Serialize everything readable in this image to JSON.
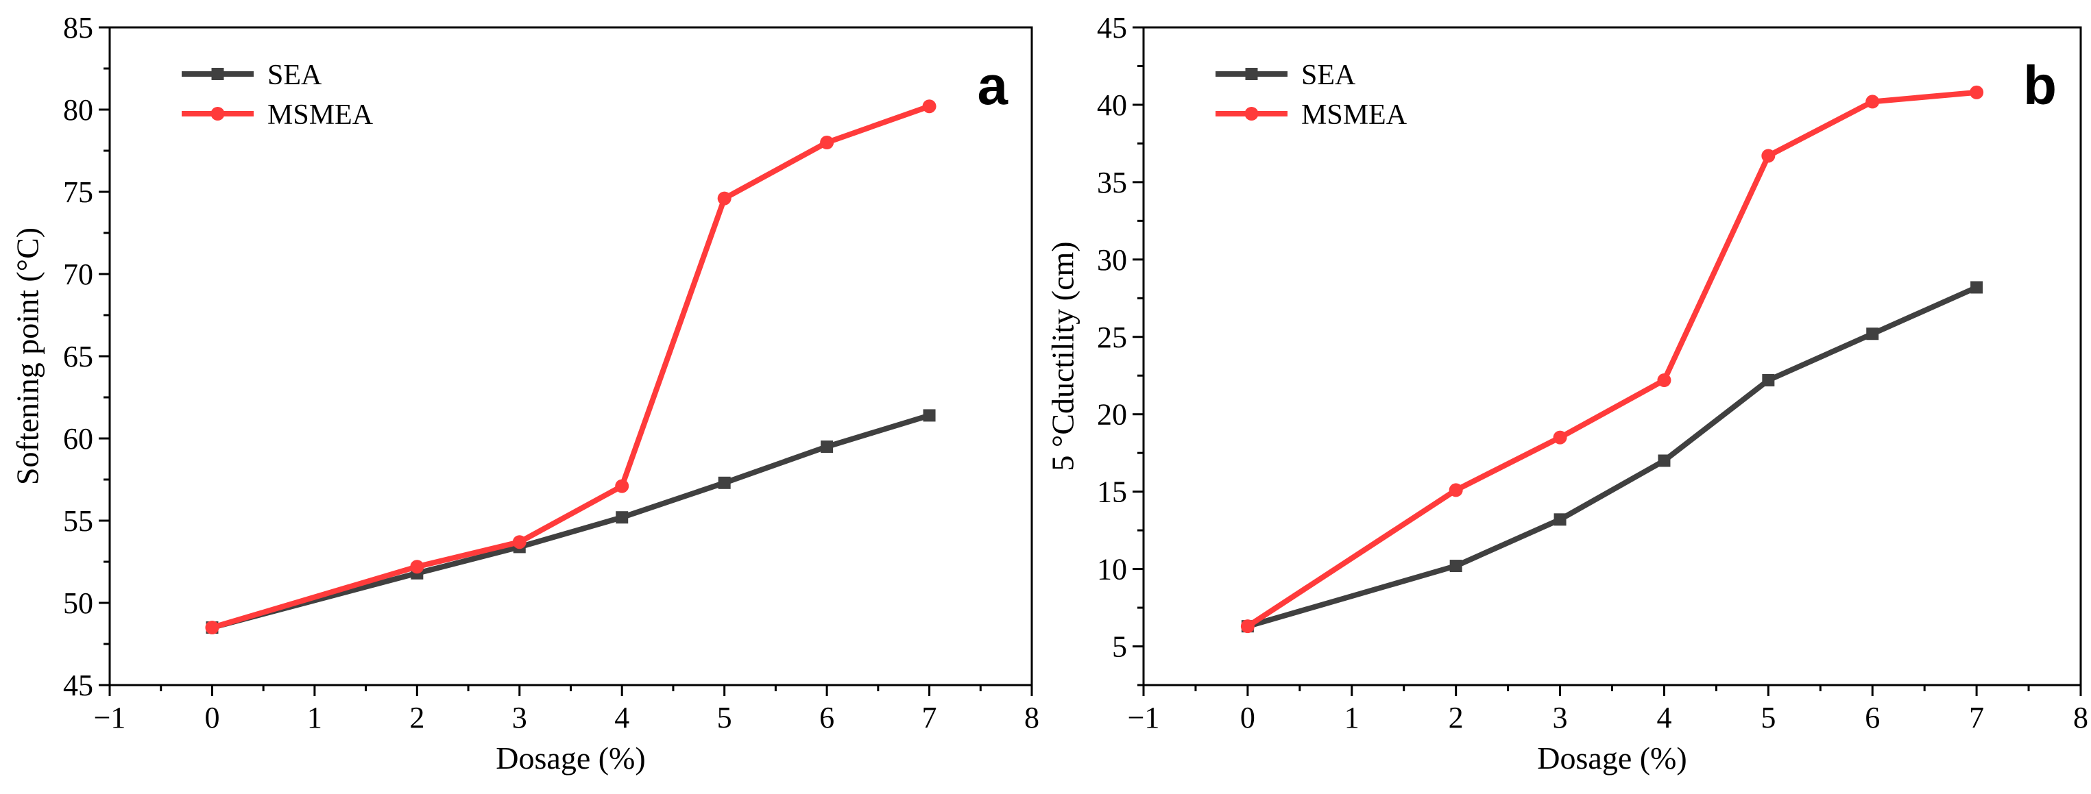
{
  "chart_data": [
    {
      "type": "line",
      "panel_label": "a",
      "xlabel": "Dosage (%)",
      "ylabel": "Softening point (°C)",
      "xlim": [
        -1,
        8
      ],
      "ylim": [
        45,
        85
      ],
      "xticks": [
        -1,
        0,
        1,
        2,
        3,
        4,
        5,
        6,
        7,
        8
      ],
      "yticks": [
        45,
        50,
        55,
        60,
        65,
        70,
        75,
        80,
        85
      ],
      "legend_position": "top-left",
      "series": [
        {
          "name": "SEA",
          "color": "#404040",
          "marker": "square",
          "x": [
            0,
            2,
            3,
            4,
            5,
            6,
            7
          ],
          "y": [
            48.5,
            51.8,
            53.4,
            55.2,
            57.3,
            59.5,
            61.4
          ]
        },
        {
          "name": "MSMEA",
          "color": "#ff3b3b",
          "marker": "circle",
          "x": [
            0,
            2,
            3,
            4,
            5,
            6,
            7
          ],
          "y": [
            48.5,
            52.2,
            53.7,
            57.1,
            74.6,
            78.0,
            80.2
          ]
        }
      ]
    },
    {
      "type": "line",
      "panel_label": "b",
      "xlabel": "Dosage (%)",
      "ylabel": "5 °Cductility (cm)",
      "xlim": [
        -1,
        8
      ],
      "ylim": [
        2.5,
        45
      ],
      "xticks": [
        -1,
        0,
        1,
        2,
        3,
        4,
        5,
        6,
        7,
        8
      ],
      "yticks": [
        5,
        10,
        15,
        20,
        25,
        30,
        35,
        40,
        45
      ],
      "legend_position": "top-left",
      "series": [
        {
          "name": "SEA",
          "color": "#404040",
          "marker": "square",
          "x": [
            0,
            2,
            3,
            4,
            5,
            6,
            7
          ],
          "y": [
            6.3,
            10.2,
            13.2,
            17.0,
            22.2,
            25.2,
            28.2
          ]
        },
        {
          "name": "MSMEA",
          "color": "#ff3b3b",
          "marker": "circle",
          "x": [
            0,
            2,
            3,
            4,
            5,
            6,
            7
          ],
          "y": [
            6.3,
            15.1,
            18.5,
            22.2,
            36.7,
            40.2,
            40.8
          ]
        }
      ]
    }
  ]
}
